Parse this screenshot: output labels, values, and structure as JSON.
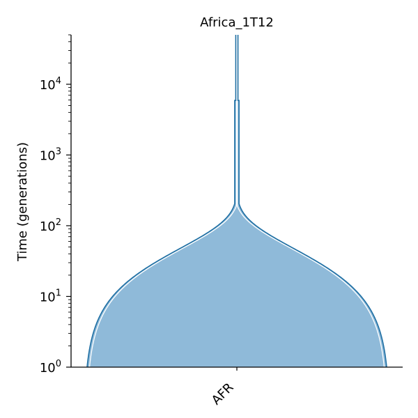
{
  "chart_data": {
    "type": "area",
    "title": "Africa_1T12",
    "ylabel": "Time (generations)",
    "xlabel": "",
    "y_scale": "log",
    "ylim": [
      1,
      50000
    ],
    "y_major_ticks": [
      {
        "value": 1,
        "label": "10",
        "exp": "0"
      },
      {
        "value": 10,
        "label": "10",
        "exp": "1"
      },
      {
        "value": 100,
        "label": "10",
        "exp": "2"
      },
      {
        "value": 1000,
        "label": "10",
        "exp": "3"
      },
      {
        "value": 10000,
        "label": "10",
        "exp": "4"
      }
    ],
    "categories": [
      "AFR"
    ],
    "grid": false,
    "colors": {
      "fill": "#8fbad9",
      "outline": "#1f6fa3",
      "inner_line": "#ffffff"
    },
    "deme": {
      "name": "AFR",
      "epochs": [
        {
          "start_time": 50000,
          "end_time": 5900,
          "size": 7300,
          "shape": "constant"
        },
        {
          "start_time": 5900,
          "end_time": 205,
          "size": 14500,
          "shape": "constant"
        },
        {
          "start_time": 205,
          "end_time": 1,
          "size_start": 14500,
          "size_end": 1000000,
          "shape": "exponential"
        }
      ]
    }
  }
}
